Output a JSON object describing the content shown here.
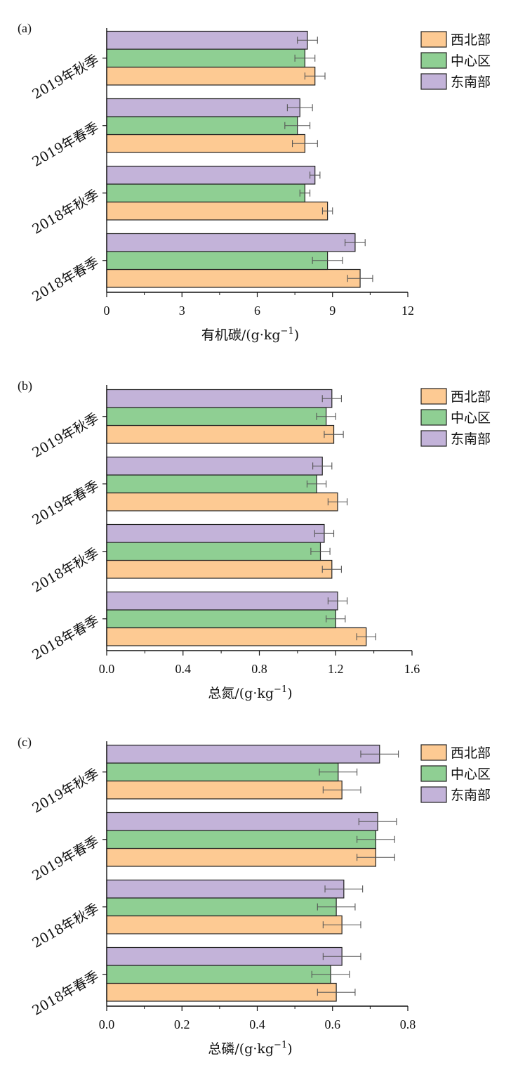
{
  "colors": {
    "西北部": "#fdca93",
    "中心区": "#8fcf93",
    "东南部": "#c3b3d9",
    "stroke": "#222222",
    "error": "#555555"
  },
  "chart_data": [
    {
      "type": "bar",
      "orientation": "horizontal",
      "panel_label": "(a)",
      "categories": [
        "2018年春季",
        "2018年秋季",
        "2019年春季",
        "2019年秋季"
      ],
      "series": [
        {
          "name": "西北部",
          "values": [
            10.1,
            8.8,
            7.9,
            8.3
          ],
          "errors": [
            0.5,
            0.2,
            0.5,
            0.4
          ]
        },
        {
          "name": "中心区",
          "values": [
            8.8,
            7.9,
            7.6,
            7.9
          ],
          "errors": [
            0.6,
            0.2,
            0.5,
            0.4
          ]
        },
        {
          "name": "东南部",
          "values": [
            9.9,
            8.3,
            7.7,
            8.0
          ],
          "errors": [
            0.4,
            0.2,
            0.5,
            0.4
          ]
        }
      ],
      "xlabel": "有机碳/(g·kg",
      "xlabel_sup": "−1",
      "xlabel_end": ")",
      "xlim": [
        0,
        12
      ],
      "xticks": [
        0,
        3,
        6,
        9,
        12
      ],
      "tick_labels": [
        "0",
        "3",
        "6",
        "9",
        "12"
      ],
      "legend": [
        "西北部",
        "中心区",
        "东南部"
      ],
      "legend_position": "top-right",
      "grid": false
    },
    {
      "type": "bar",
      "orientation": "horizontal",
      "panel_label": "(b)",
      "categories": [
        "2018年春季",
        "2018年秋季",
        "2019年春季",
        "2019年秋季"
      ],
      "series": [
        {
          "name": "西北部",
          "values": [
            1.36,
            1.18,
            1.21,
            1.19
          ],
          "errors": [
            0.05,
            0.05,
            0.05,
            0.05
          ]
        },
        {
          "name": "中心区",
          "values": [
            1.2,
            1.12,
            1.1,
            1.15
          ],
          "errors": [
            0.05,
            0.05,
            0.05,
            0.05
          ]
        },
        {
          "name": "东南部",
          "values": [
            1.21,
            1.14,
            1.13,
            1.18
          ],
          "errors": [
            0.05,
            0.05,
            0.05,
            0.05
          ]
        }
      ],
      "xlabel": "总氮/(g·kg",
      "xlabel_sup": "−1",
      "xlabel_end": ")",
      "xlim": [
        0,
        1.6
      ],
      "xticks": [
        0,
        0.4,
        0.8,
        1.2,
        1.6
      ],
      "tick_labels": [
        "0.0",
        "0.4",
        "0.8",
        "1.2",
        "1.6"
      ],
      "legend": [
        "西北部",
        "中心区",
        "东南部"
      ],
      "legend_position": "top-right",
      "grid": false
    },
    {
      "type": "bar",
      "orientation": "horizontal",
      "panel_label": "(c)",
      "categories": [
        "2018年春季",
        "2018年秋季",
        "2019年春季",
        "2019年秋季"
      ],
      "series": [
        {
          "name": "西北部",
          "values": [
            0.61,
            0.625,
            0.715,
            0.625
          ],
          "errors": [
            0.05,
            0.05,
            0.05,
            0.05
          ]
        },
        {
          "name": "中心区",
          "values": [
            0.595,
            0.61,
            0.715,
            0.615
          ],
          "errors": [
            0.05,
            0.05,
            0.05,
            0.05
          ]
        },
        {
          "name": "东南部",
          "values": [
            0.625,
            0.63,
            0.72,
            0.725
          ],
          "errors": [
            0.05,
            0.05,
            0.05,
            0.05
          ]
        }
      ],
      "xlabel": "总磷/(g·kg",
      "xlabel_sup": "−1",
      "xlabel_end": ")",
      "xlim": [
        0,
        0.8
      ],
      "xticks": [
        0,
        0.2,
        0.4,
        0.6,
        0.8
      ],
      "tick_labels": [
        "0.0",
        "0.2",
        "0.4",
        "0.6",
        "0.8"
      ],
      "legend": [
        "西北部",
        "中心区",
        "东南部"
      ],
      "legend_position": "top-right",
      "grid": false
    }
  ]
}
